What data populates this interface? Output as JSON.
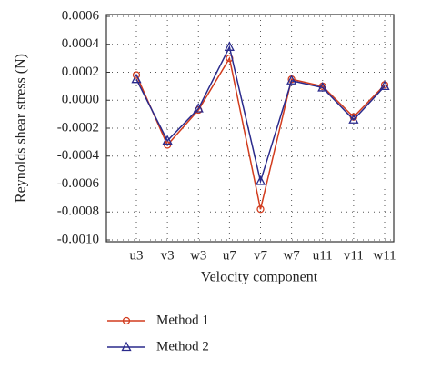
{
  "chart_data": {
    "type": "line",
    "x_label": "Velocity component",
    "y_label": "Reynolds shear stress (N)",
    "categories": [
      "u3",
      "v3",
      "w3",
      "u7",
      "v7",
      "w7",
      "u11",
      "v11",
      "w11"
    ],
    "series": [
      {
        "name": "Method 1",
        "color": "#d23c1e",
        "marker": "circle",
        "values": [
          0.00018,
          -0.00032,
          -7e-05,
          0.0003,
          -0.00078,
          0.00015,
          0.0001,
          -0.00012,
          0.00011
        ]
      },
      {
        "name": "Method 2",
        "color": "#2a2a8c",
        "marker": "triangle",
        "values": [
          0.00015,
          -0.00029,
          -6e-05,
          0.00038,
          -0.00058,
          0.00014,
          9e-05,
          -0.00014,
          0.0001
        ]
      }
    ],
    "ylim": [
      -0.001,
      0.0006
    ],
    "yticks": [
      0.0006,
      0.0004,
      0.0002,
      {
        "value": 0,
        "label": "0.0000"
      },
      -0.0002,
      -0.0004,
      -0.0006,
      -0.0008,
      {
        "value": -0.001,
        "label": "-0.0010"
      }
    ],
    "grid": true
  }
}
